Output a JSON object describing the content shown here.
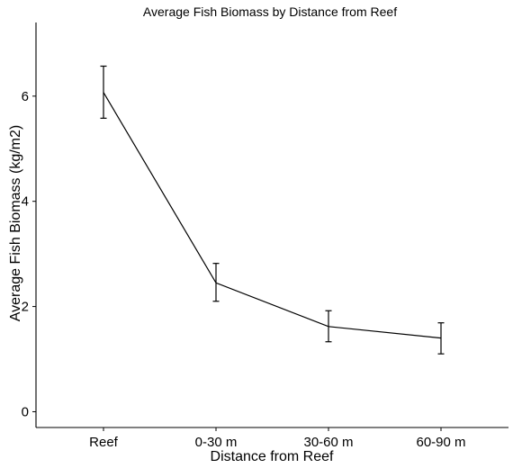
{
  "chart_data": {
    "type": "line",
    "title": "Average Fish Biomass by Distance from Reef",
    "xlabel": "Distance from Reef",
    "ylabel": "Average Fish Biomass (kg/m2)",
    "categories": [
      "Reef",
      "0-30 m",
      "30-60 m",
      "60-90 m"
    ],
    "series": [
      {
        "values": [
          6.07,
          2.45,
          1.62,
          1.4
        ],
        "error_low": [
          5.58,
          2.1,
          1.33,
          1.1
        ],
        "error_high": [
          6.57,
          2.82,
          1.92,
          1.69
        ]
      }
    ],
    "ylim": [
      -0.3,
      7.4
    ],
    "yticks": [
      0,
      2,
      4,
      6
    ],
    "ytick_labels": [
      "0",
      "2",
      "4",
      "6"
    ],
    "grid": false,
    "legend": "none",
    "colors": {
      "line": "#000000",
      "background": "#ffffff"
    }
  }
}
